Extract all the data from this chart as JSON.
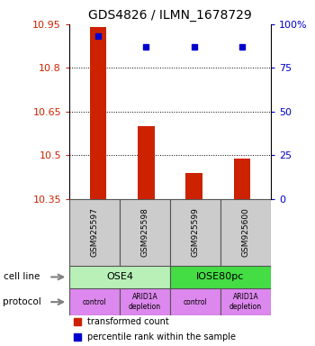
{
  "title": "GDS4826 / ILMN_1678729",
  "samples": [
    "GSM925597",
    "GSM925598",
    "GSM925599",
    "GSM925600"
  ],
  "transformed_counts": [
    10.94,
    10.6,
    10.44,
    10.49
  ],
  "percentile_ranks": [
    93,
    87,
    87,
    87
  ],
  "ymin": 10.35,
  "ymax": 10.95,
  "yticks": [
    10.35,
    10.5,
    10.65,
    10.8,
    10.95
  ],
  "ytick_labels": [
    "10.35",
    "10.5",
    "10.65",
    "10.8",
    "10.95"
  ],
  "right_yticks": [
    0,
    25,
    50,
    75,
    100
  ],
  "right_ytick_labels": [
    "0",
    "25",
    "50",
    "75",
    "100%"
  ],
  "cell_line_labels": [
    "OSE4",
    "IOSE80pc"
  ],
  "cell_line_spans": [
    [
      0,
      2
    ],
    [
      2,
      4
    ]
  ],
  "cell_line_color_light": "#b8f0b8",
  "cell_line_color_dark": "#44dd44",
  "protocol_labels": [
    "control",
    "ARID1A\ndepletion",
    "control",
    "ARID1A\ndepletion"
  ],
  "protocol_color": "#dd88ee",
  "bar_color": "#cc2200",
  "dot_color": "#0000cc",
  "sample_box_color": "#cccccc",
  "legend_bar_label": "transformed count",
  "legend_dot_label": "percentile rank within the sample",
  "left_axis_color": "#cc2200",
  "right_axis_color": "#0000cc",
  "bar_width": 0.35
}
